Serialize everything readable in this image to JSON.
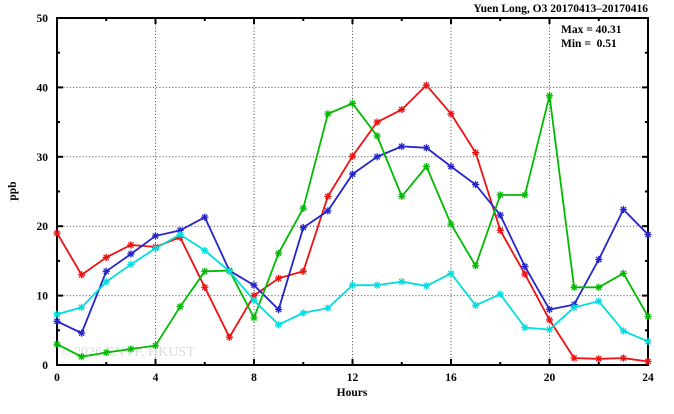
{
  "title": "Yuen Long, O3 20170413–20170416",
  "annotation": {
    "max_line": "Max = 40.31",
    "min_line": "Min =  0.51"
  },
  "watermark": "© 2026 ENVF, HKUST",
  "colors": {
    "axis": "#000000",
    "grid": "#444444",
    "watermark": "#dcdcdc",
    "background": "#ffffff",
    "red": "#ee1111",
    "blue": "#2424cc",
    "green": "#00bb00",
    "cyan": "#00dddd"
  },
  "chart_data": {
    "type": "line",
    "title": "Yuen Long, O3 20170413–20170416",
    "xlabel": "Hours",
    "ylabel": "ppb",
    "xlim": [
      0,
      24
    ],
    "ylim": [
      0,
      50
    ],
    "xticks_major": [
      0,
      4,
      8,
      12,
      16,
      20,
      24
    ],
    "xticks_minor_step": 2,
    "yticks_major": [
      0,
      10,
      20,
      30,
      40,
      50
    ],
    "yticks_minor_step": 5,
    "grid": "dotted-at-major-ticks",
    "legend_position": "none",
    "marker": "asterisk",
    "annotations": [
      "Max = 40.31",
      "Min =  0.51"
    ],
    "stats": {
      "max": 40.31,
      "min": 0.51
    },
    "x": [
      0,
      1,
      2,
      3,
      4,
      5,
      6,
      7,
      8,
      9,
      10,
      11,
      12,
      13,
      14,
      15,
      16,
      17,
      18,
      19,
      20,
      21,
      22,
      23,
      24
    ],
    "series": [
      {
        "name": "red-series",
        "color": "#ee1111",
        "values": [
          19.0,
          13.0,
          15.5,
          17.3,
          17.0,
          18.4,
          11.2,
          4.0,
          10.0,
          12.5,
          13.5,
          24.3,
          30.1,
          35.0,
          36.8,
          40.31,
          36.2,
          30.6,
          19.4,
          13.1,
          6.5,
          1.0,
          0.9,
          1.0,
          0.51
        ]
      },
      {
        "name": "blue-series",
        "color": "#2424cc",
        "values": [
          6.3,
          4.6,
          13.5,
          16.0,
          18.6,
          19.4,
          21.3,
          13.6,
          11.5,
          8.0,
          19.8,
          22.2,
          27.5,
          30.0,
          31.5,
          31.3,
          28.6,
          26.0,
          21.6,
          14.2,
          8.0,
          8.7,
          15.2,
          22.4,
          18.8
        ]
      },
      {
        "name": "green-series",
        "color": "#00bb00",
        "values": [
          3.0,
          1.2,
          1.8,
          2.3,
          2.8,
          8.4,
          13.5,
          13.6,
          6.8,
          16.1,
          22.6,
          36.2,
          37.7,
          33.0,
          24.3,
          28.6,
          20.3,
          14.3,
          24.5,
          24.5,
          38.8,
          11.2,
          11.2,
          13.2,
          7.0
        ]
      },
      {
        "name": "cyan-series",
        "color": "#00dddd",
        "values": [
          7.3,
          8.3,
          12.0,
          14.5,
          16.8,
          18.8,
          16.5,
          13.5,
          9.3,
          5.8,
          7.5,
          8.2,
          11.5,
          11.5,
          12.0,
          11.4,
          13.2,
          8.6,
          10.2,
          5.4,
          5.1,
          8.3,
          9.2,
          4.9,
          3.4
        ]
      }
    ]
  }
}
